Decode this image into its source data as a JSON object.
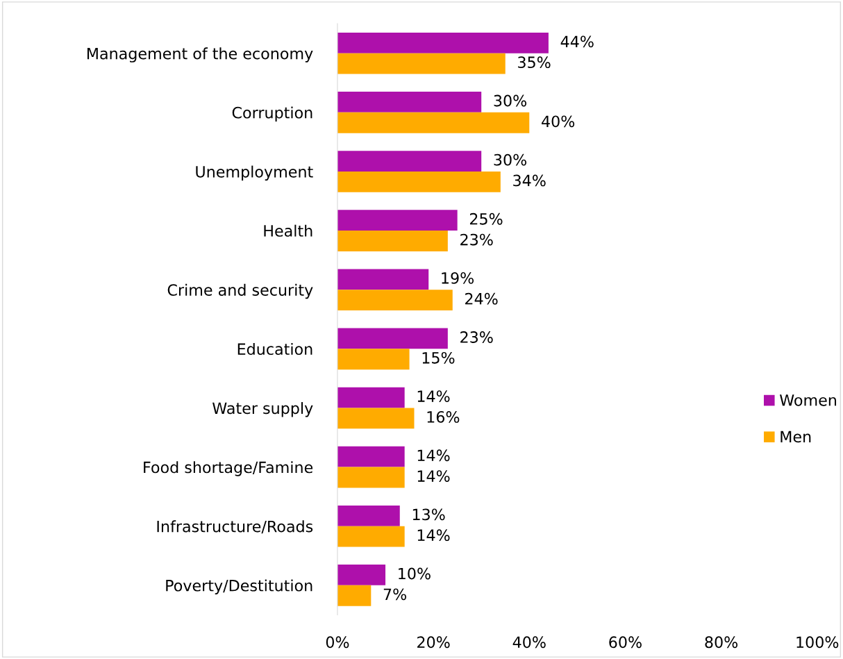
{
  "chart_data": {
    "type": "bar",
    "orientation": "horizontal",
    "categories": [
      "Management of the economy",
      "Corruption",
      "Unemployment",
      "Health",
      "Crime and security",
      "Education",
      "Water supply",
      "Food shortage/Famine",
      "Infrastructure/Roads",
      "Poverty/Destitution"
    ],
    "series": [
      {
        "name": "Women",
        "color": "#ae10ab",
        "values": [
          44,
          30,
          30,
          25,
          19,
          23,
          14,
          14,
          13,
          10
        ],
        "value_labels": [
          "44%",
          "30%",
          "30%",
          "25%",
          "19%",
          "23%",
          "14%",
          "14%",
          "13%",
          "10%"
        ]
      },
      {
        "name": "Men",
        "color": "#ffab00",
        "values": [
          35,
          40,
          34,
          23,
          24,
          15,
          16,
          14,
          14,
          7
        ],
        "value_labels": [
          "35%",
          "40%",
          "34%",
          "23%",
          "24%",
          "15%",
          "16%",
          "14%",
          "14%",
          "7%"
        ]
      }
    ],
    "xlim": [
      0,
      100
    ],
    "xticks": [
      {
        "value": 0,
        "label": "0%"
      },
      {
        "value": 20,
        "label": "20%"
      },
      {
        "value": 40,
        "label": "40%"
      },
      {
        "value": 60,
        "label": "60%"
      },
      {
        "value": 80,
        "label": "80%"
      },
      {
        "value": 100,
        "label": "100%"
      }
    ],
    "legend": "right",
    "grid": false
  }
}
